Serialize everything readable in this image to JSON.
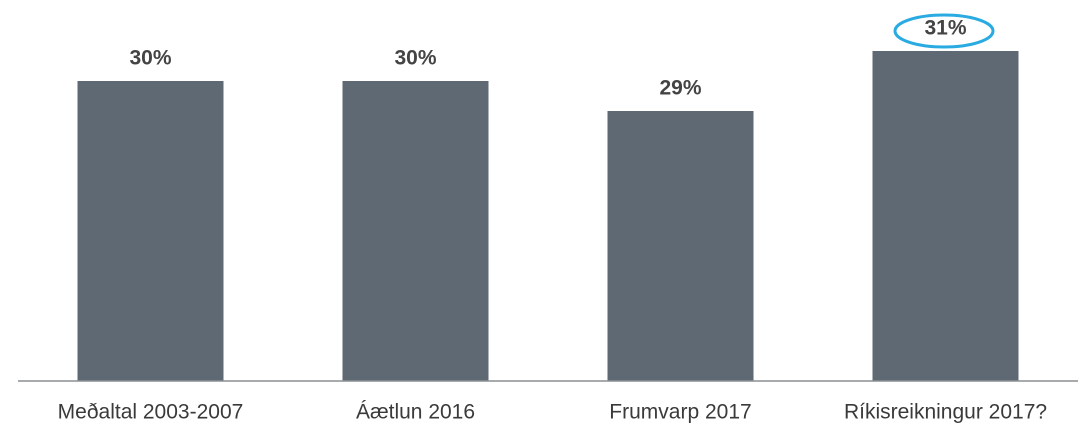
{
  "chart_data": {
    "type": "bar",
    "categories": [
      "Meðaltal 2003-2007",
      "Áætlun 2016",
      "Frumvarp 2017",
      "Ríkisreikningur 2017?"
    ],
    "values": [
      30,
      30,
      29,
      31
    ],
    "value_labels": [
      "30%",
      "30%",
      "29%",
      "31%"
    ],
    "color": "#5e6973",
    "ylim": [
      20,
      32
    ]
  }
}
